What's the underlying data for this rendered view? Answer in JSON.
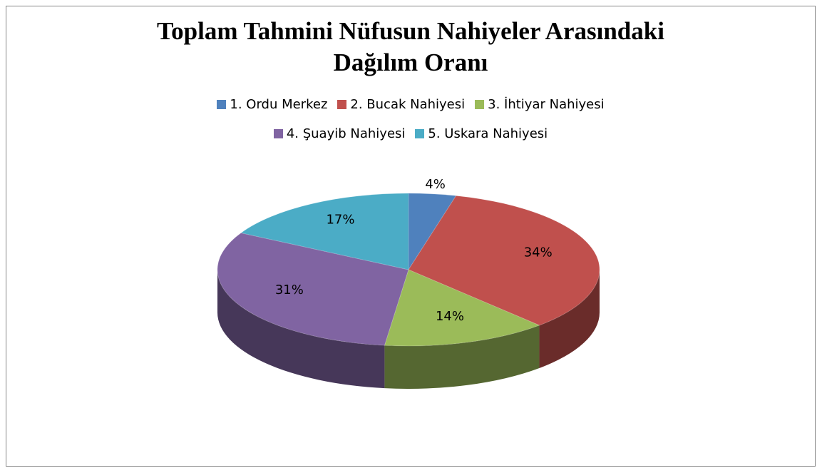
{
  "chart_data": {
    "type": "pie",
    "title": "Toplam Tahmini Nüfusun Nahiyeler Arasındaki Dağılım Oranı",
    "categories": [
      "1. Ordu Merkez",
      "2. Bucak Nahiyesi",
      "3. İhtiyar Nahiyesi",
      "4. Şuayib Nahiyesi",
      "5. Uskara Nahiyesi"
    ],
    "values": [
      4,
      34,
      14,
      31,
      17
    ],
    "value_labels": [
      "4%",
      "34%",
      "14%",
      "31%",
      "17%"
    ],
    "colors": [
      "#4f81bd",
      "#c0504d",
      "#9bbb59",
      "#8064a2",
      "#4bacc6"
    ],
    "legend": "top"
  }
}
